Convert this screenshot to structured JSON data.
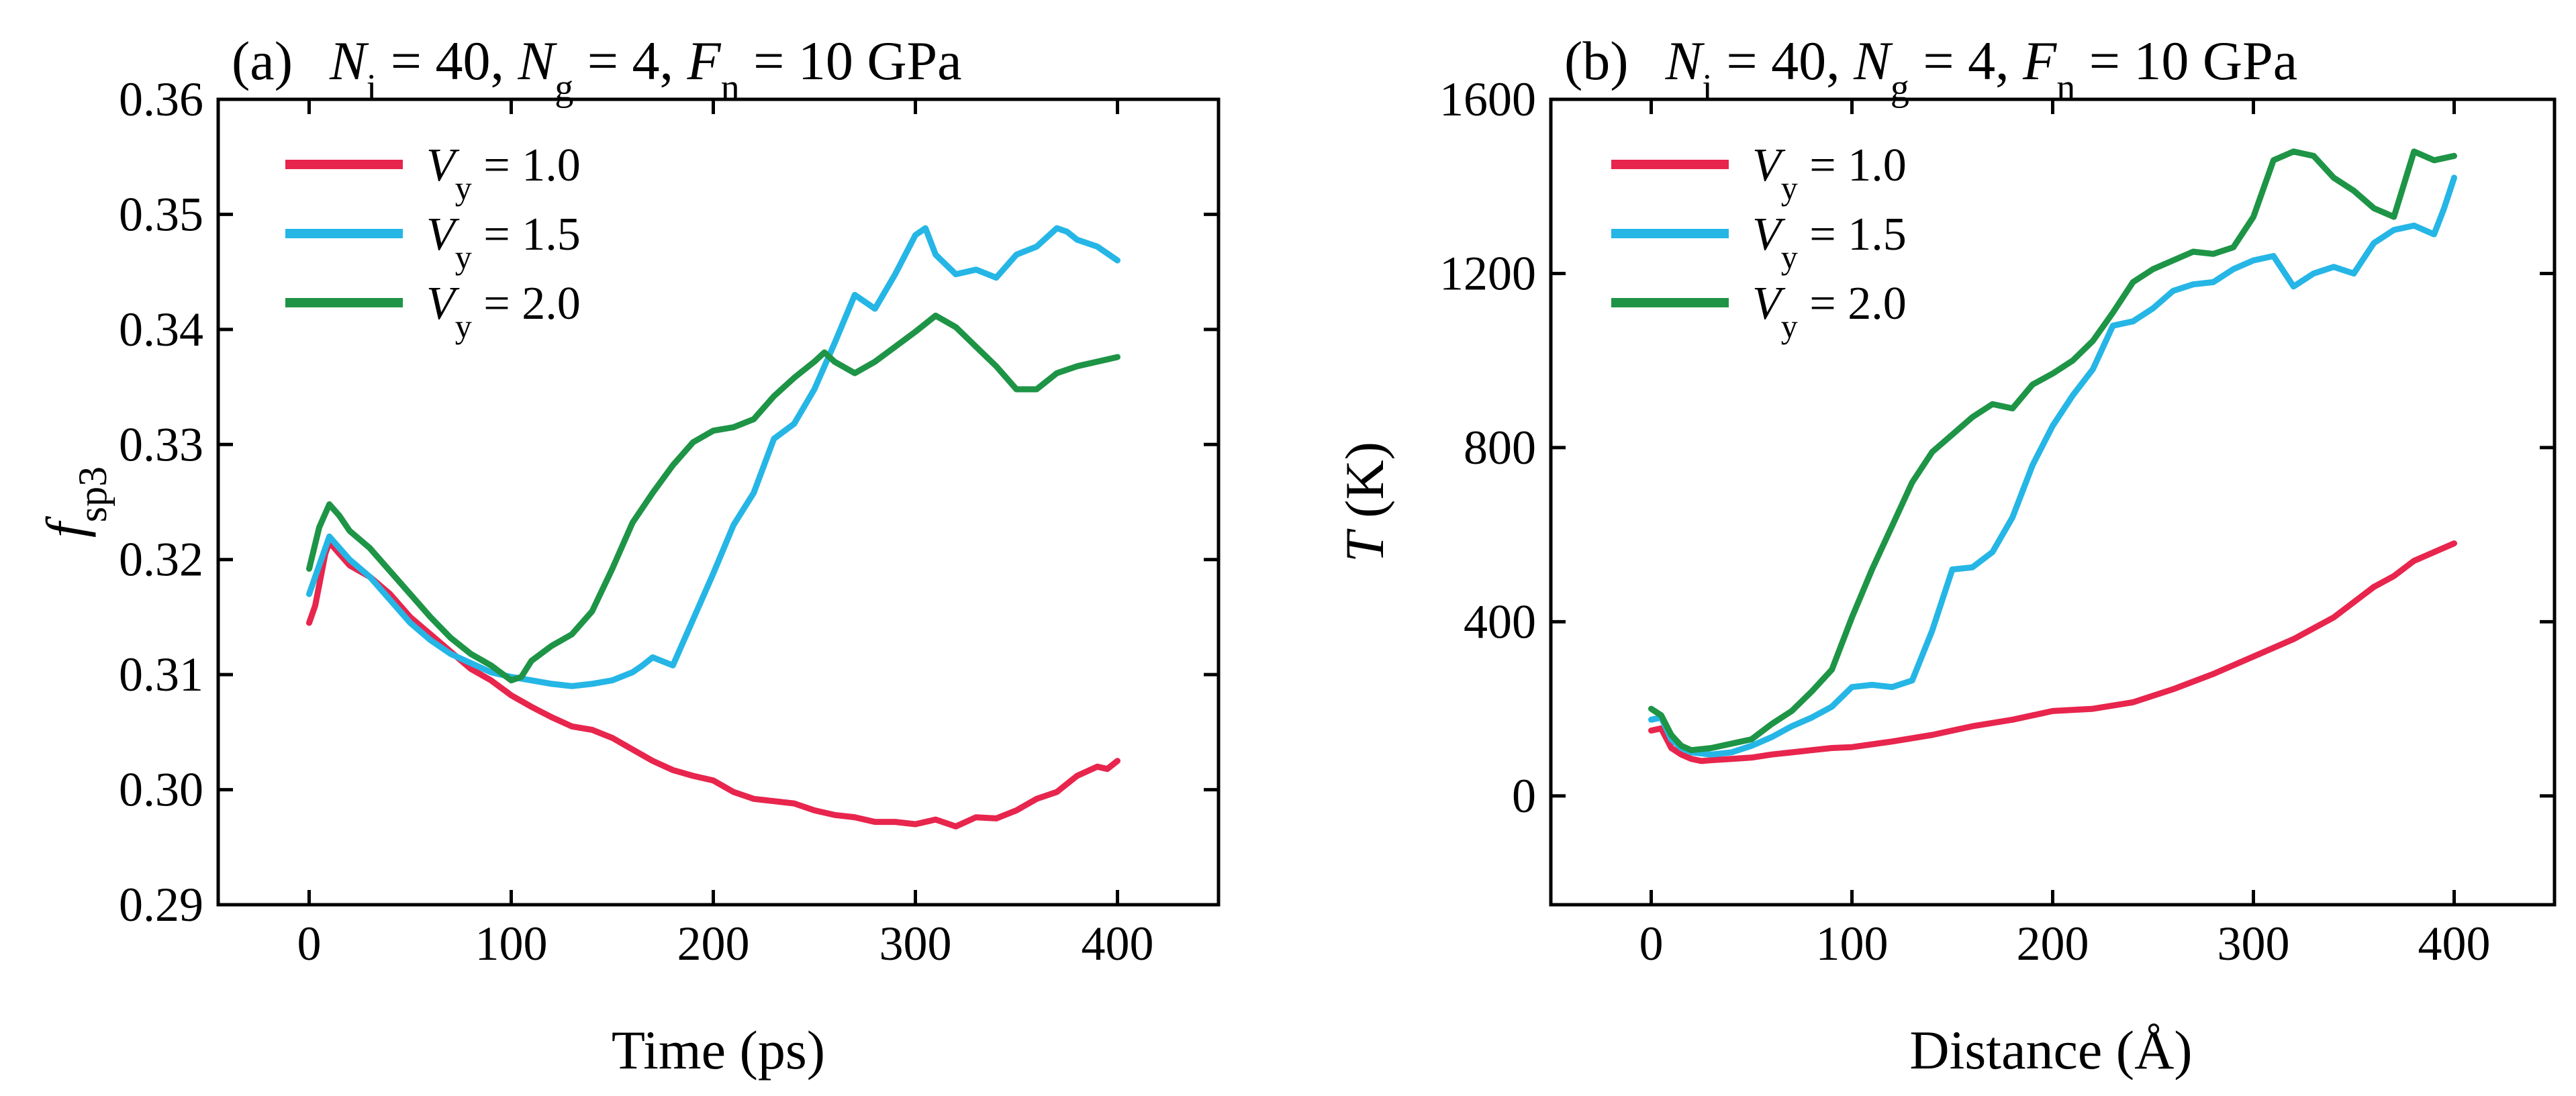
{
  "chart_data": [
    {
      "type": "line",
      "panel_label": "(a)",
      "title_parts": {
        "n1_sym": "N",
        "n1_sub": "i",
        "n1_val": " = 40, ",
        "n2_sym": "N",
        "n2_sub": "g",
        "n2_val": " = 4, ",
        "n3_sym": "F",
        "n3_sub": "n",
        "n3_val": " = 10 GPa"
      },
      "xlabel": "Time (ps)",
      "ylabel_sym": "f",
      "ylabel_sub": "sp3",
      "xlim": [
        -45,
        450
      ],
      "ylim": [
        0.29,
        0.36
      ],
      "xticks": [
        0,
        100,
        200,
        300,
        400
      ],
      "xtick_labels": [
        "0",
        "100",
        "200",
        "300",
        "400"
      ],
      "yticks": [
        0.29,
        0.3,
        0.31,
        0.32,
        0.33,
        0.34,
        0.35,
        0.36
      ],
      "ytick_labels": [
        "0.29",
        "0.30",
        "0.31",
        "0.32",
        "0.33",
        "0.34",
        "0.35",
        "0.36"
      ],
      "legend_position": "top-left",
      "series": [
        {
          "name_sym": "V",
          "name_sub": "y",
          "name_val": " = 1.0",
          "color": "#e8254d",
          "x": [
            0,
            3,
            8,
            10,
            15,
            20,
            30,
            40,
            50,
            60,
            70,
            80,
            90,
            100,
            110,
            120,
            130,
            140,
            150,
            160,
            170,
            180,
            190,
            200,
            210,
            220,
            230,
            240,
            250,
            260,
            270,
            280,
            290,
            300,
            310,
            320,
            330,
            340,
            350,
            360,
            370,
            380,
            390,
            395,
            400
          ],
          "y": [
            0.3145,
            0.316,
            0.3205,
            0.3215,
            0.3205,
            0.3195,
            0.3185,
            0.317,
            0.315,
            0.3135,
            0.312,
            0.3105,
            0.3095,
            0.3082,
            0.3072,
            0.3063,
            0.3055,
            0.3052,
            0.3045,
            0.3035,
            0.3025,
            0.3017,
            0.3012,
            0.3008,
            0.2998,
            0.2992,
            0.299,
            0.2988,
            0.2982,
            0.2978,
            0.2976,
            0.2972,
            0.2972,
            0.297,
            0.2974,
            0.2968,
            0.2976,
            0.2975,
            0.2982,
            0.2992,
            0.2998,
            0.3012,
            0.302,
            0.3018,
            0.3025
          ]
        },
        {
          "name_sym": "V",
          "name_sub": "y",
          "name_val": " = 1.5",
          "color": "#25b6e6",
          "x": [
            0,
            5,
            10,
            15,
            20,
            30,
            40,
            50,
            60,
            70,
            80,
            90,
            100,
            110,
            120,
            130,
            140,
            150,
            160,
            165,
            170,
            180,
            190,
            200,
            210,
            220,
            230,
            240,
            250,
            260,
            270,
            280,
            290,
            300,
            305,
            310,
            320,
            330,
            340,
            350,
            360,
            370,
            375,
            380,
            390,
            400
          ],
          "y": [
            0.317,
            0.3195,
            0.322,
            0.321,
            0.32,
            0.3185,
            0.3165,
            0.3145,
            0.313,
            0.3118,
            0.311,
            0.3102,
            0.3098,
            0.3095,
            0.3092,
            0.309,
            0.3092,
            0.3095,
            0.3102,
            0.3108,
            0.3115,
            0.3108,
            0.3148,
            0.3188,
            0.323,
            0.3258,
            0.3305,
            0.3318,
            0.3348,
            0.3388,
            0.343,
            0.3418,
            0.3448,
            0.3482,
            0.3488,
            0.3465,
            0.3448,
            0.3452,
            0.3445,
            0.3465,
            0.3472,
            0.3488,
            0.3485,
            0.3478,
            0.3472,
            0.346
          ]
        },
        {
          "name_sym": "V",
          "name_sub": "y",
          "name_val": " = 2.0",
          "color": "#1e9446",
          "x": [
            0,
            5,
            10,
            15,
            20,
            30,
            40,
            50,
            60,
            70,
            80,
            90,
            100,
            105,
            110,
            120,
            130,
            140,
            150,
            160,
            170,
            180,
            190,
            200,
            210,
            220,
            230,
            240,
            250,
            255,
            260,
            270,
            280,
            290,
            300,
            310,
            320,
            330,
            340,
            350,
            360,
            370,
            380,
            390,
            400
          ],
          "y": [
            0.3192,
            0.3228,
            0.3248,
            0.3238,
            0.3225,
            0.321,
            0.319,
            0.317,
            0.315,
            0.3132,
            0.3118,
            0.3108,
            0.3095,
            0.3098,
            0.3112,
            0.3125,
            0.3135,
            0.3155,
            0.3192,
            0.3232,
            0.3258,
            0.3282,
            0.3302,
            0.3312,
            0.3315,
            0.3322,
            0.3342,
            0.3358,
            0.3372,
            0.338,
            0.3372,
            0.3362,
            0.3372,
            0.3385,
            0.3398,
            0.3412,
            0.3402,
            0.3385,
            0.3368,
            0.3348,
            0.3348,
            0.3362,
            0.3368,
            0.3372,
            0.3376
          ]
        }
      ]
    },
    {
      "type": "line",
      "panel_label": "(b)",
      "title_parts": {
        "n1_sym": "N",
        "n1_sub": "i",
        "n1_val": " = 40, ",
        "n2_sym": "N",
        "n2_sub": "g",
        "n2_val": " = 4, ",
        "n3_sym": "F",
        "n3_sub": "n",
        "n3_val": " = 10 GPa"
      },
      "xlabel": "Distance (Å)",
      "ylabel_sym": "T",
      "ylabel_sub": "",
      "ylabel_rest": " (K)",
      "xlim": [
        -50,
        450
      ],
      "ylim": [
        -250,
        1600
      ],
      "xticks": [
        0,
        100,
        200,
        300,
        400
      ],
      "xtick_labels": [
        "0",
        "100",
        "200",
        "300",
        "400"
      ],
      "yticks": [
        0,
        400,
        800,
        1200,
        1600
      ],
      "ytick_labels": [
        "0",
        "400",
        "800",
        "1200",
        "1600"
      ],
      "legend_position": "top-left",
      "series": [
        {
          "name_sym": "V",
          "name_sub": "y",
          "name_val": " = 1.0",
          "color": "#e8254d",
          "x": [
            0,
            5,
            10,
            15,
            20,
            25,
            30,
            40,
            50,
            60,
            70,
            80,
            90,
            100,
            120,
            140,
            160,
            180,
            200,
            220,
            240,
            260,
            280,
            300,
            320,
            340,
            360,
            370,
            380,
            390,
            400
          ],
          "y": [
            150,
            155,
            110,
            95,
            85,
            80,
            82,
            85,
            88,
            95,
            100,
            105,
            110,
            112,
            125,
            140,
            160,
            175,
            195,
            200,
            215,
            245,
            280,
            320,
            360,
            410,
            480,
            505,
            540,
            560,
            580
          ]
        },
        {
          "name_sym": "V",
          "name_sub": "y",
          "name_val": " = 1.5",
          "color": "#25b6e6",
          "x": [
            0,
            5,
            10,
            15,
            20,
            30,
            40,
            50,
            60,
            70,
            80,
            90,
            100,
            110,
            120,
            130,
            140,
            150,
            160,
            170,
            180,
            190,
            200,
            210,
            220,
            230,
            240,
            250,
            260,
            270,
            280,
            290,
            300,
            310,
            320,
            330,
            340,
            350,
            360,
            370,
            380,
            390,
            395,
            400
          ],
          "y": [
            175,
            180,
            130,
            110,
            100,
            95,
            100,
            115,
            135,
            160,
            180,
            205,
            250,
            255,
            250,
            265,
            380,
            520,
            525,
            560,
            640,
            760,
            850,
            920,
            980,
            1080,
            1090,
            1120,
            1160,
            1175,
            1180,
            1210,
            1230,
            1240,
            1170,
            1200,
            1215,
            1200,
            1270,
            1300,
            1310,
            1290,
            1350,
            1420
          ]
        },
        {
          "name_sym": "V",
          "name_sub": "y",
          "name_val": " = 2.0",
          "color": "#1e9446",
          "x": [
            0,
            5,
            10,
            15,
            20,
            30,
            40,
            50,
            60,
            70,
            80,
            90,
            100,
            110,
            120,
            130,
            140,
            150,
            160,
            170,
            180,
            190,
            200,
            210,
            220,
            230,
            240,
            250,
            260,
            270,
            280,
            290,
            300,
            310,
            320,
            330,
            340,
            350,
            360,
            370,
            380,
            390,
            400
          ],
          "y": [
            200,
            185,
            140,
            115,
            105,
            110,
            120,
            130,
            165,
            195,
            240,
            290,
            410,
            520,
            620,
            720,
            790,
            830,
            870,
            900,
            890,
            945,
            970,
            1000,
            1045,
            1110,
            1180,
            1210,
            1230,
            1250,
            1245,
            1260,
            1330,
            1460,
            1480,
            1470,
            1420,
            1390,
            1350,
            1330,
            1480,
            1460,
            1470
          ]
        }
      ]
    }
  ]
}
